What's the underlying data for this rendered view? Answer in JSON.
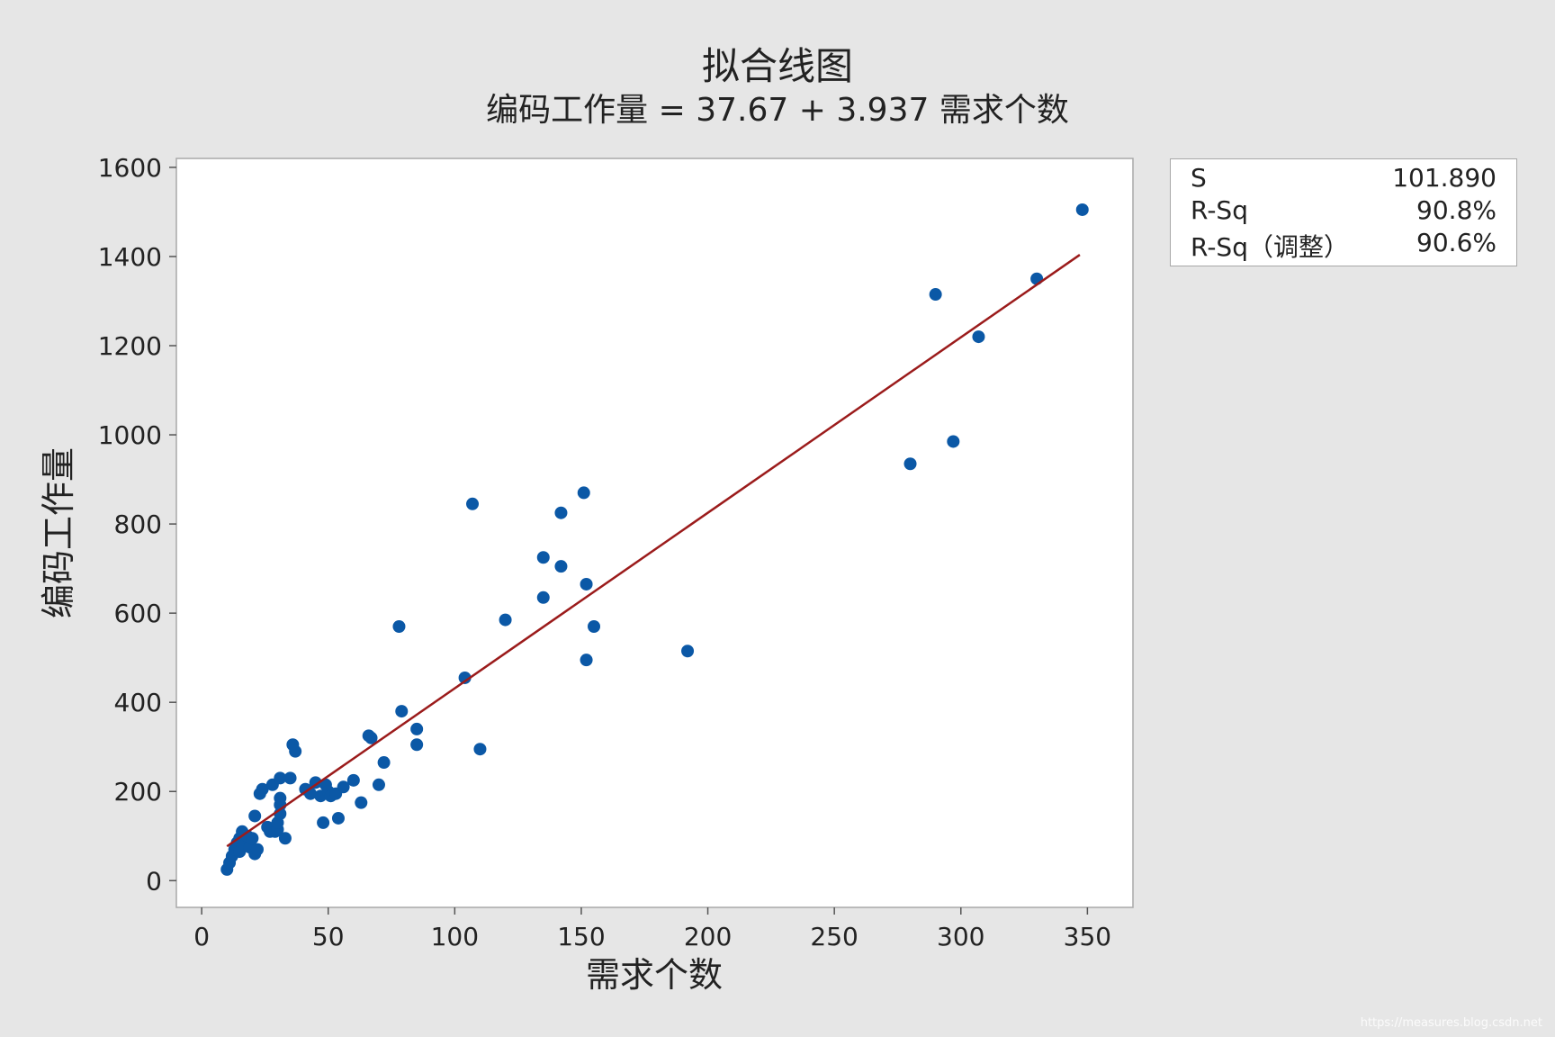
{
  "title": "拟合线图",
  "subtitle": "编码工作量 = 37.67 + 3.937 需求个数",
  "watermark": "https://measures.blog.csdn.net",
  "colors": {
    "background": "#e6e6e6",
    "plot_area": "#ffffff",
    "points": "#0b58a6",
    "fit_line": "#9b1b1b"
  },
  "stats": {
    "items": [
      {
        "label": "S",
        "value": "101.890"
      },
      {
        "label": "R-Sq",
        "value": "90.8%"
      },
      {
        "label": "R-Sq（调整）",
        "value": "90.6%"
      }
    ]
  },
  "chart_data": {
    "type": "scatter",
    "title": "拟合线图",
    "subtitle": "编码工作量 = 37.67 + 3.937 需求个数",
    "xlabel": "需求个数",
    "ylabel": "编码工作量",
    "xlim": [
      -10,
      368
    ],
    "ylim": [
      -60,
      1620
    ],
    "x_ticks": [
      0,
      50,
      100,
      150,
      200,
      250,
      300,
      350
    ],
    "y_ticks": [
      0,
      200,
      400,
      600,
      800,
      1000,
      1200,
      1400,
      1600
    ],
    "grid": false,
    "fit_line": {
      "intercept": 37.67,
      "slope": 3.937,
      "x_range": [
        10,
        347
      ]
    },
    "points": [
      [
        10,
        25
      ],
      [
        11,
        40
      ],
      [
        12,
        55
      ],
      [
        13,
        70
      ],
      [
        14,
        85
      ],
      [
        15,
        65
      ],
      [
        15,
        95
      ],
      [
        16,
        110
      ],
      [
        17,
        80
      ],
      [
        18,
        100
      ],
      [
        19,
        75
      ],
      [
        20,
        95
      ],
      [
        21,
        60
      ],
      [
        22,
        70
      ],
      [
        21,
        145
      ],
      [
        23,
        195
      ],
      [
        24,
        205
      ],
      [
        26,
        120
      ],
      [
        27,
        110
      ],
      [
        28,
        215
      ],
      [
        29,
        110
      ],
      [
        30,
        115
      ],
      [
        30,
        130
      ],
      [
        31,
        150
      ],
      [
        31,
        170
      ],
      [
        31,
        185
      ],
      [
        31,
        230
      ],
      [
        33,
        95
      ],
      [
        35,
        230
      ],
      [
        36,
        305
      ],
      [
        37,
        290
      ],
      [
        41,
        205
      ],
      [
        43,
        195
      ],
      [
        45,
        220
      ],
      [
        47,
        190
      ],
      [
        48,
        130
      ],
      [
        49,
        215
      ],
      [
        50,
        200
      ],
      [
        51,
        190
      ],
      [
        53,
        195
      ],
      [
        54,
        140
      ],
      [
        56,
        210
      ],
      [
        60,
        225
      ],
      [
        63,
        175
      ],
      [
        66,
        325
      ],
      [
        67,
        320
      ],
      [
        70,
        215
      ],
      [
        72,
        265
      ],
      [
        78,
        570
      ],
      [
        79,
        380
      ],
      [
        85,
        340
      ],
      [
        85,
        305
      ],
      [
        104,
        455
      ],
      [
        107,
        845
      ],
      [
        110,
        295
      ],
      [
        120,
        585
      ],
      [
        135,
        725
      ],
      [
        135,
        635
      ],
      [
        142,
        825
      ],
      [
        142,
        705
      ],
      [
        151,
        870
      ],
      [
        152,
        665
      ],
      [
        152,
        495
      ],
      [
        155,
        570
      ],
      [
        192,
        515
      ],
      [
        280,
        935
      ],
      [
        290,
        1315
      ],
      [
        297,
        985
      ],
      [
        307,
        1220
      ],
      [
        330,
        1350
      ],
      [
        348,
        1505
      ]
    ]
  }
}
